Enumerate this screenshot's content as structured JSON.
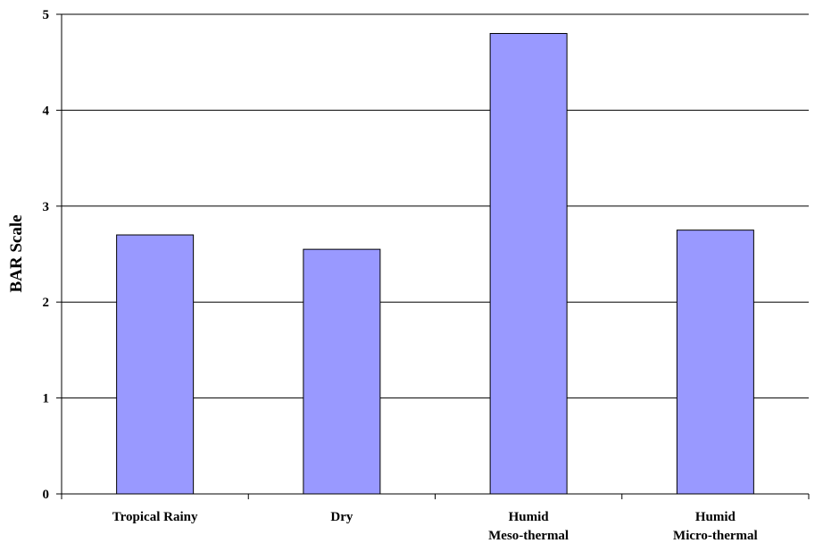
{
  "chart_data": {
    "type": "bar",
    "categories": [
      [
        "Tropical Rainy"
      ],
      [
        "Dry"
      ],
      [
        "Humid",
        "Meso-thermal"
      ],
      [
        "Humid",
        "Micro-thermal"
      ]
    ],
    "values": [
      2.7,
      2.55,
      4.8,
      2.75
    ],
    "title": "",
    "xlabel": "",
    "ylabel": "BAR Scale",
    "ylim": [
      0,
      5
    ],
    "yticks": [
      "0",
      "1",
      "2",
      "3",
      "4",
      "5"
    ],
    "grid": true,
    "legend": "none",
    "colors": {
      "bar_fill": "#9999ff",
      "bar_stroke": "#000000",
      "gridline": "#000000",
      "axis": "#000000"
    }
  }
}
